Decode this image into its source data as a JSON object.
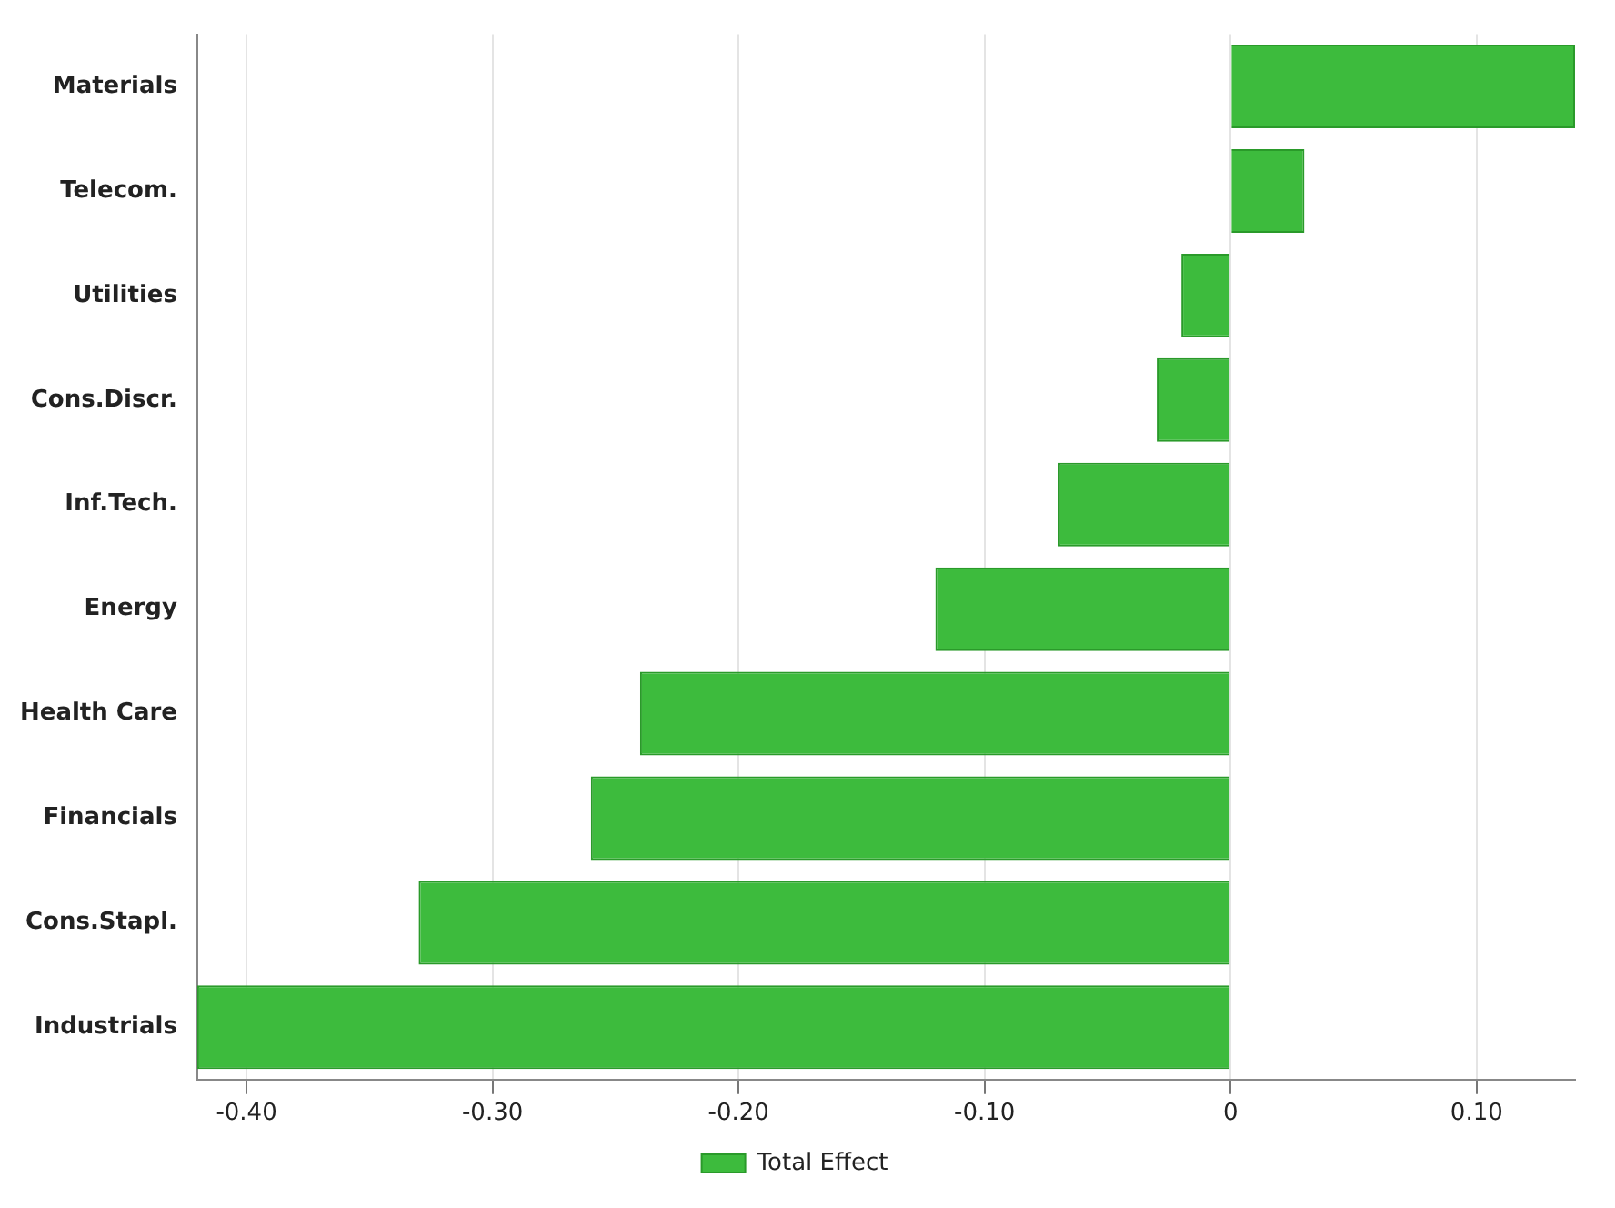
{
  "chart_data": {
    "type": "bar",
    "orientation": "horizontal",
    "categories": [
      "Materials",
      "Telecom.",
      "Utilities",
      "Cons.Discr.",
      "Inf.Tech.",
      "Energy",
      "Health Care",
      "Financials",
      "Cons.Stapl.",
      "Industrials"
    ],
    "series": [
      {
        "name": "Total Effect",
        "color": "#3dbb3d",
        "values": [
          0.14,
          0.03,
          -0.02,
          -0.03,
          -0.07,
          -0.12,
          -0.24,
          -0.26,
          -0.33,
          -0.42
        ]
      }
    ],
    "xlim": [
      -0.42,
      0.14
    ],
    "xticks": [
      {
        "value": -0.4,
        "label": "-0.40"
      },
      {
        "value": -0.3,
        "label": "-0.30"
      },
      {
        "value": -0.2,
        "label": "-0.20"
      },
      {
        "value": -0.1,
        "label": "-0.10"
      },
      0,
      {
        "value": 0.1,
        "label": "0.10"
      }
    ],
    "grid": "x",
    "legend": "bottom"
  }
}
